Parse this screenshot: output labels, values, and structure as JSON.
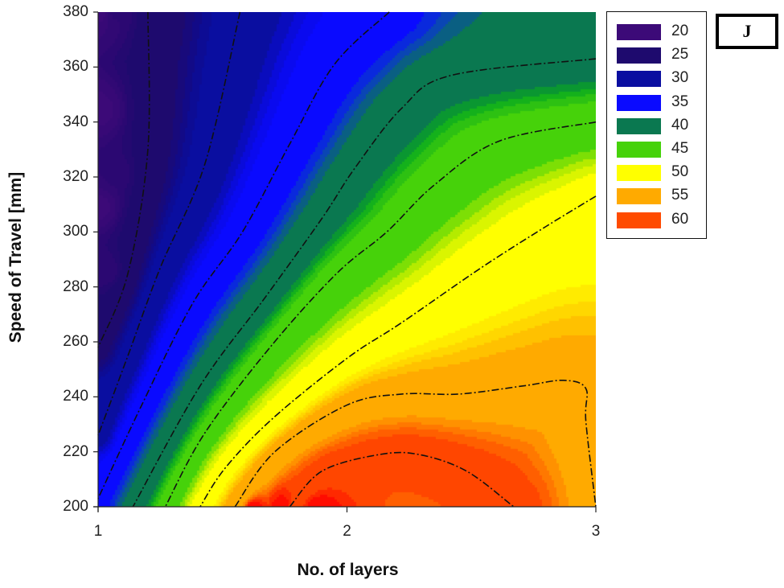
{
  "chart_data": {
    "type": "heatmap",
    "subtype": "filled_contour",
    "title": "",
    "panel_label": "J",
    "xlabel": "No. of layers",
    "ylabel": "Speed of Travel [mm]",
    "xlim": [
      1,
      3
    ],
    "ylim": [
      200,
      380
    ],
    "x_ticks": [
      "1",
      "2",
      "3"
    ],
    "y_ticks": [
      "200",
      "220",
      "240",
      "260",
      "280",
      "300",
      "320",
      "340",
      "360",
      "380"
    ],
    "grid": false,
    "legend_position": "right",
    "legend": [
      {
        "label": "20",
        "color": "#3c0a78"
      },
      {
        "label": "25",
        "color": "#1e0a6e"
      },
      {
        "label": "30",
        "color": "#0a0ea0"
      },
      {
        "label": "35",
        "color": "#0a0aff"
      },
      {
        "label": "40",
        "color": "#0a7850"
      },
      {
        "label": "45",
        "color": "#46d20a"
      },
      {
        "label": "50",
        "color": "#ffff00"
      },
      {
        "label": "55",
        "color": "#ffaa00"
      },
      {
        "label": "60",
        "color": "#ff4b00"
      }
    ],
    "contour_levels": [
      25,
      30,
      35,
      40,
      45,
      50,
      55,
      60
    ],
    "contour_lines": [
      {
        "level": 25,
        "points": [
          [
            1.2,
            380
          ],
          [
            1.2,
            330
          ],
          [
            1.12,
            285
          ],
          [
            1.0,
            258
          ]
        ]
      },
      {
        "level": 30,
        "points": [
          [
            1.57,
            380
          ],
          [
            1.43,
            325
          ],
          [
            1.25,
            287
          ],
          [
            1.12,
            255
          ],
          [
            1.0,
            226
          ]
        ]
      },
      {
        "level": 35,
        "points": [
          [
            2.17,
            380
          ],
          [
            1.95,
            361
          ],
          [
            1.77,
            332
          ],
          [
            1.58,
            300
          ],
          [
            1.38,
            274
          ],
          [
            1.17,
            236
          ],
          [
            1.0,
            203
          ]
        ]
      },
      {
        "level": 40,
        "points": [
          [
            3.0,
            363
          ],
          [
            2.42,
            357
          ],
          [
            2.22,
            345
          ],
          [
            2.03,
            323
          ],
          [
            1.9,
            305
          ],
          [
            1.67,
            276
          ],
          [
            1.41,
            244
          ],
          [
            1.14,
            200
          ]
        ]
      },
      {
        "level": 45,
        "points": [
          [
            3.0,
            340
          ],
          [
            2.61,
            333
          ],
          [
            2.35,
            317
          ],
          [
            2.16,
            300
          ],
          [
            1.96,
            285
          ],
          [
            1.7,
            259
          ],
          [
            1.43,
            227
          ],
          [
            1.27,
            200
          ]
        ]
      },
      {
        "level": 50,
        "points": [
          [
            3.0,
            313
          ],
          [
            2.8,
            302
          ],
          [
            2.54,
            287
          ],
          [
            2.22,
            267
          ],
          [
            2.0,
            254
          ],
          [
            1.7,
            232
          ],
          [
            1.51,
            214
          ],
          [
            1.41,
            200
          ]
        ]
      },
      {
        "level": 55,
        "points": [
          [
            1.55,
            200
          ],
          [
            1.71,
            220
          ],
          [
            2.0,
            237
          ],
          [
            2.22,
            241
          ],
          [
            2.45,
            241
          ],
          [
            2.71,
            244
          ],
          [
            2.87,
            246
          ],
          [
            2.96,
            243
          ],
          [
            2.96,
            231
          ],
          [
            3.0,
            200
          ]
        ]
      },
      {
        "level": 60,
        "points": [
          [
            1.77,
            200
          ],
          [
            1.9,
            213
          ],
          [
            2.13,
            219
          ],
          [
            2.29,
            219
          ],
          [
            2.48,
            213
          ],
          [
            2.67,
            200
          ]
        ]
      }
    ],
    "peak": {
      "x": 2.25,
      "y": 200,
      "value_approx": 62
    },
    "min": {
      "x": 1.0,
      "y": 380,
      "value_approx": 20
    }
  }
}
